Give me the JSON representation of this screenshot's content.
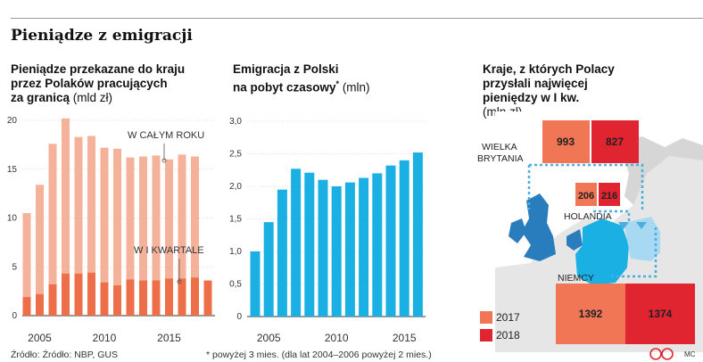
{
  "page": {
    "title": "Pieniądze z emigracji",
    "source": "Źródło: Źródło: NBP, GUS",
    "footnote": "* powyżej 3 mies. (dla lat 2004–2006 powyżej 2 mies.)",
    "credit": "MC"
  },
  "panels": {
    "p1": {
      "title_l1": "Pieniądze przekazane do kraju",
      "title_l2": "przez Polaków pracujących",
      "title_l3": "za granicą",
      "unit": "(mld zł)"
    },
    "p2": {
      "title_l1": "Emigracja z Polski",
      "title_l2": "na pobyt czasowy",
      "star": "*",
      "unit": "(mln)"
    },
    "p3": {
      "title_l1": "Kraje, z których Polacy",
      "title_l2": "przysłali najwięcej",
      "title_l3": "pieniędzy w I kw.",
      "unit": "(mln zł)"
    }
  },
  "chart_data": [
    {
      "type": "bar",
      "x": [
        2004,
        2005,
        2006,
        2007,
        2008,
        2009,
        2010,
        2011,
        2012,
        2013,
        2014,
        2015,
        2016,
        2017
      ],
      "ylim": [
        0,
        20
      ],
      "yticks": [
        "0",
        "5",
        "10",
        "15",
        "20"
      ],
      "xticks": [
        "2005",
        "2010",
        "2015"
      ],
      "annotations": [
        "W CAŁYM ROKU",
        "W I KWARTALE"
      ],
      "series": [
        {
          "name": "W CAŁYM ROKU",
          "values": [
            10.5,
            13.4,
            17.6,
            20.2,
            18.3,
            18.4,
            17.2,
            17.1,
            16.2,
            16.3,
            16.4,
            16.0,
            16.5,
            16.3
          ],
          "color": "#f5b29a"
        },
        {
          "name": "W I KWARTALE",
          "values": [
            1.9,
            2.2,
            3.2,
            4.3,
            4.3,
            4.4,
            3.4,
            3.1,
            3.7,
            3.6,
            3.6,
            3.8,
            3.8,
            3.9,
            3.6
          ],
          "x": [
            2004,
            2005,
            2006,
            2007,
            2008,
            2009,
            2010,
            2011,
            2012,
            2013,
            2014,
            2015,
            2016,
            2017,
            2018
          ],
          "color": "#ec6f4a"
        }
      ]
    },
    {
      "type": "bar",
      "x": [
        2004,
        2005,
        2006,
        2007,
        2008,
        2009,
        2010,
        2011,
        2012,
        2013,
        2014,
        2015,
        2016
      ],
      "values": [
        1.0,
        1.45,
        1.95,
        2.27,
        2.21,
        2.1,
        2.0,
        2.06,
        2.13,
        2.2,
        2.32,
        2.4,
        2.52
      ],
      "ylim": [
        0,
        3.0
      ],
      "yticks": [
        "0",
        "0,5",
        "1,0",
        "1,5",
        "2,0",
        "2,5",
        "3,0"
      ],
      "xticks": [
        "2005",
        "2010",
        "2015"
      ],
      "color": "#1ab0e3"
    },
    {
      "type": "table",
      "columns": [
        "2017",
        "2018"
      ],
      "rows": [
        {
          "country": "WIELKA BRYTANIA",
          "values": [
            993,
            827
          ]
        },
        {
          "country": "HOLANDIA",
          "values": [
            206,
            216
          ]
        },
        {
          "country": "NIEMCY",
          "values": [
            1392,
            1374
          ]
        }
      ],
      "legend": [
        {
          "label": "2017",
          "color": "#f07656"
        },
        {
          "label": "2018",
          "color": "#e02430"
        }
      ]
    }
  ]
}
